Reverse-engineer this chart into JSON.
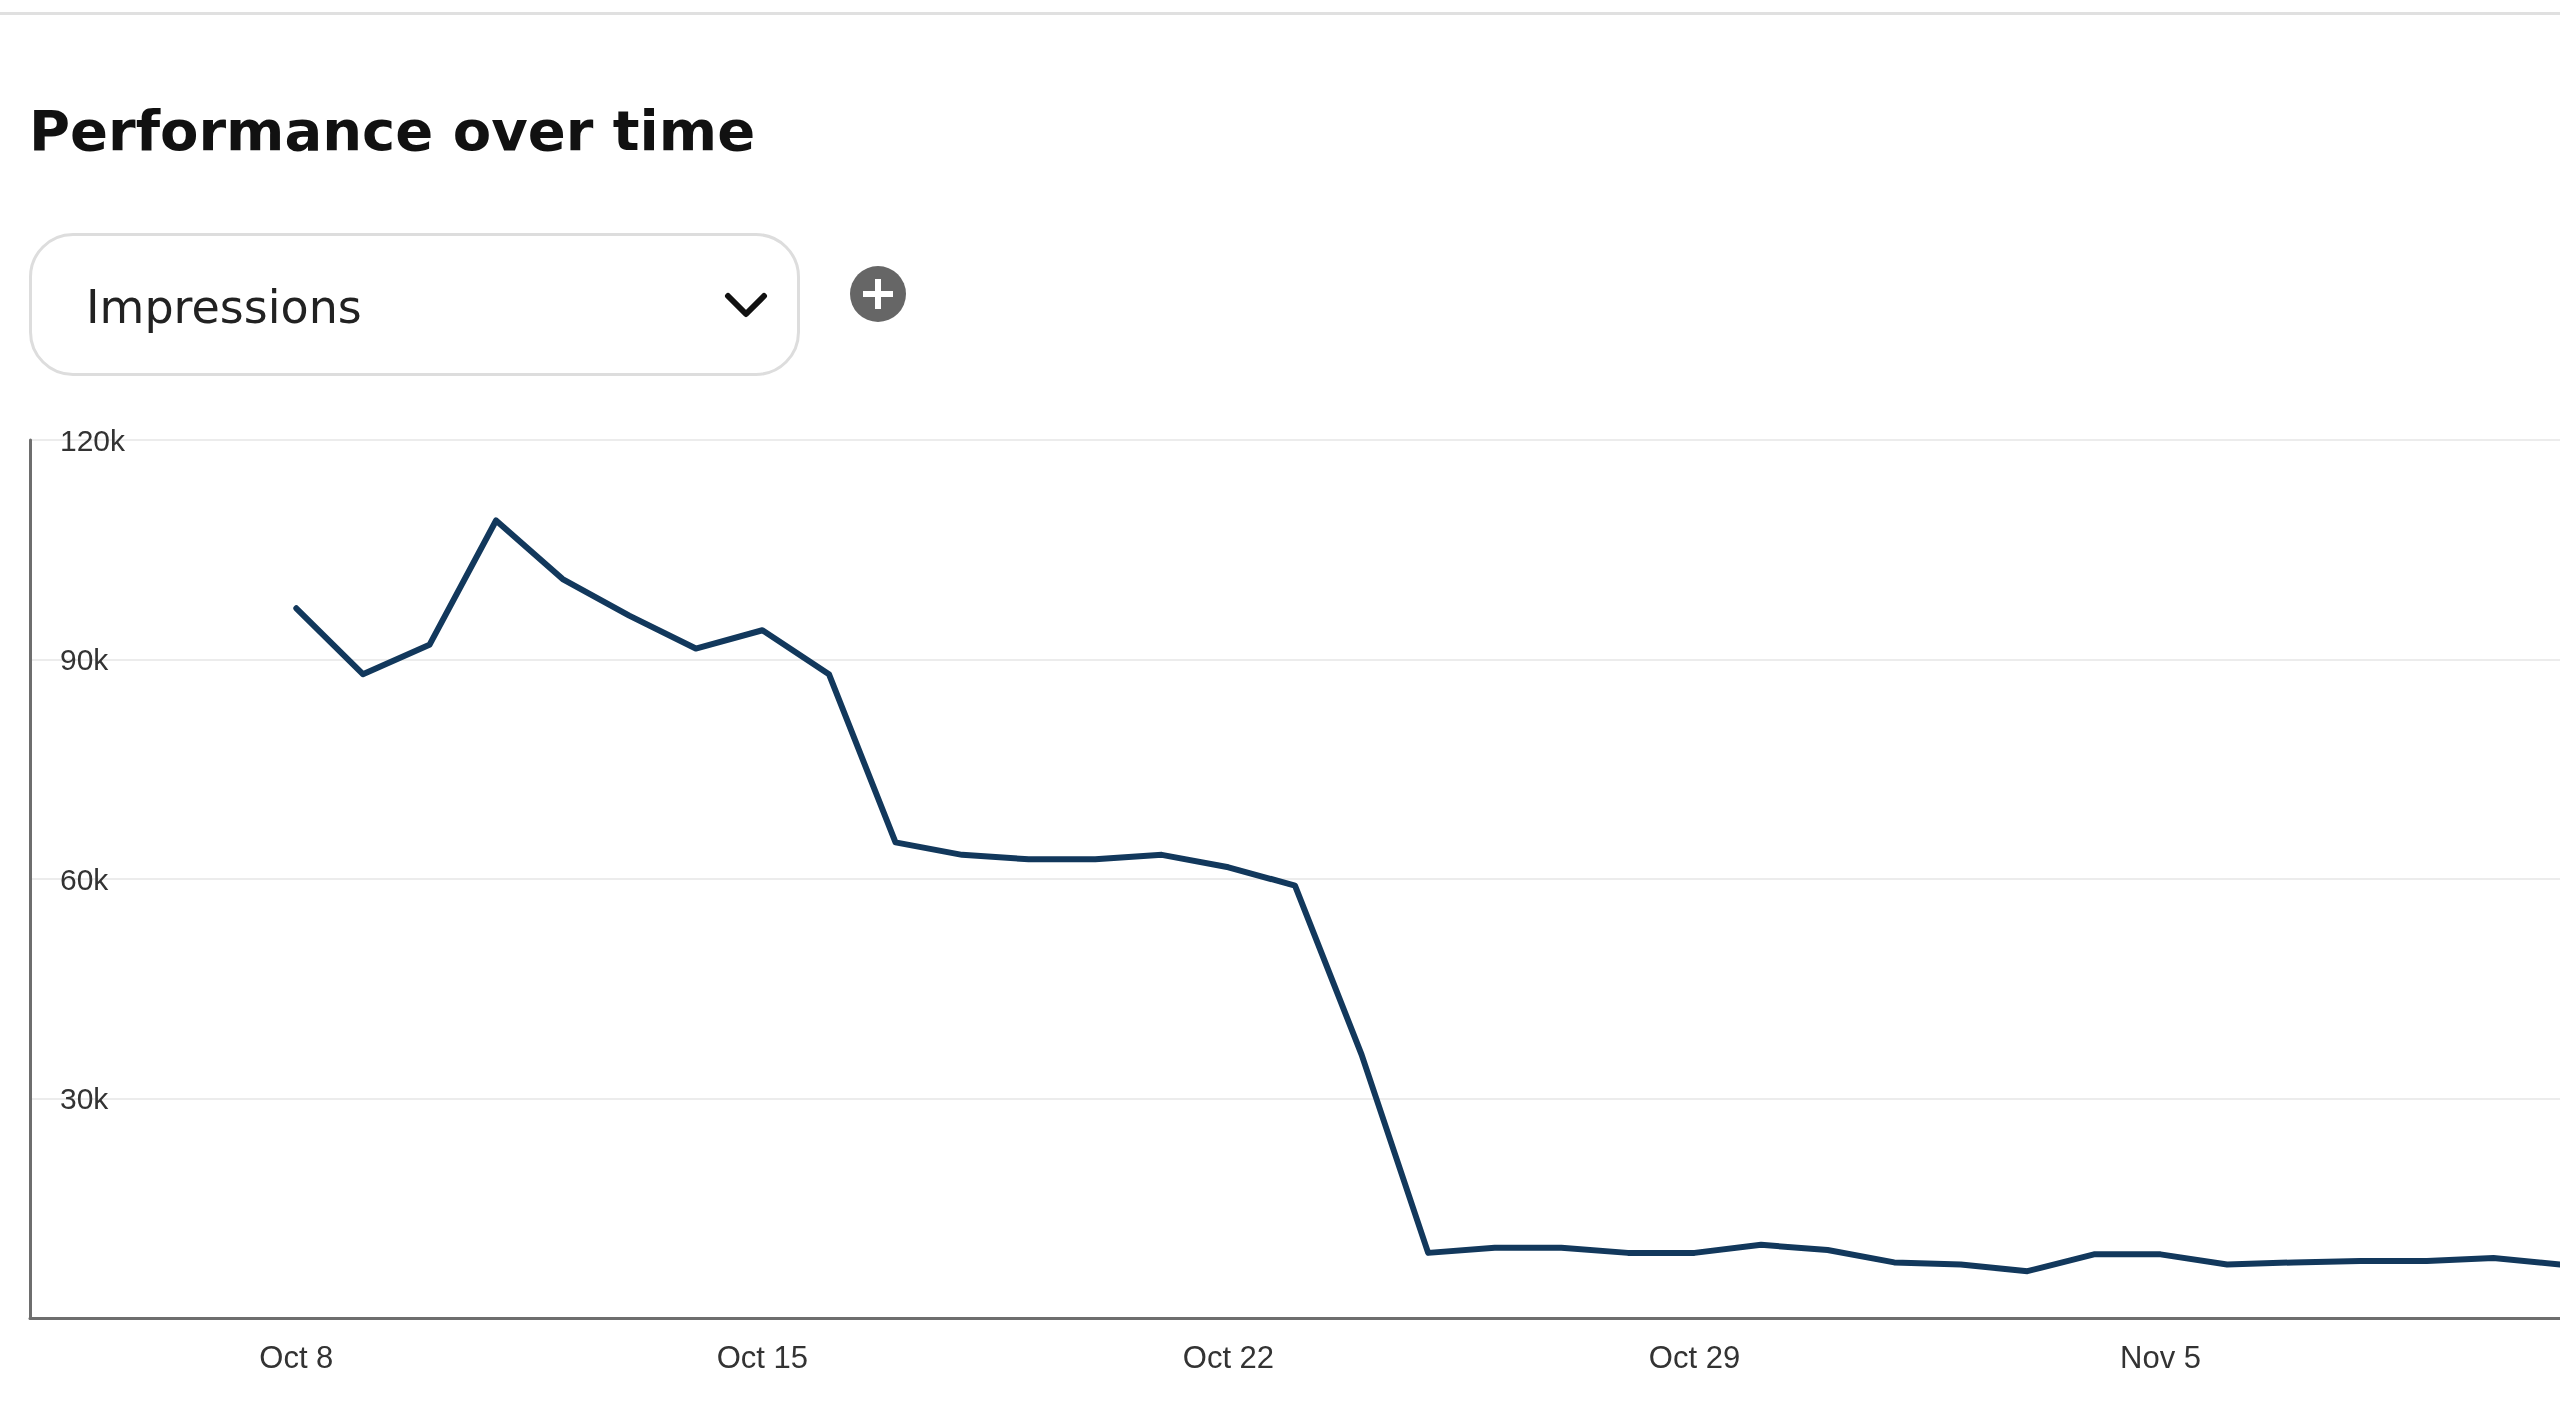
{
  "chart_data": {
    "type": "line",
    "title": "Performance over time",
    "ylabel": "Impressions",
    "x": [
      "--10-08",
      "--10-09",
      "--10-10",
      "--10-11",
      "--10-12",
      "--10-13",
      "--10-14",
      "--10-15",
      "--10-16",
      "--10-17",
      "--10-18",
      "--10-19",
      "--10-20",
      "--10-21",
      "--10-22",
      "--10-23",
      "--10-24",
      "--10-25",
      "--10-26",
      "--10-27",
      "--10-28",
      "--10-29",
      "--10-30",
      "--10-31",
      "--11-01",
      "--11-02",
      "--11-03",
      "--11-04",
      "--11-05",
      "--11-06",
      "--11-07",
      "--11-08",
      "--11-09",
      "--11-10",
      "--11-11"
    ],
    "series": [
      {
        "color": "#12385c",
        "values": [
          97000,
          88000,
          92000,
          109000,
          101000,
          96000,
          91500,
          94000,
          88000,
          65000,
          63300,
          62700,
          62700,
          63300,
          61600,
          59100,
          36000,
          8900,
          9600,
          9600,
          8900,
          8900,
          10000,
          9300,
          7600,
          7300,
          6400,
          8700,
          8700,
          7300,
          7600,
          7800,
          7800,
          8200,
          7300
        ]
      }
    ],
    "xlim": [
      "--10-04",
      "--11-11"
    ],
    "xticks": [
      {
        "value": "--10-08",
        "label": "Oct 8"
      },
      {
        "value": "--10-15",
        "label": "Oct 15"
      },
      {
        "value": "--10-22",
        "label": "Oct 22"
      },
      {
        "value": "--10-29",
        "label": "Oct 29"
      },
      {
        "value": "--11-05",
        "label": "Nov 5"
      }
    ],
    "ylim": [
      0,
      120000
    ],
    "yticks": [
      {
        "value": 30000,
        "label": "30k"
      },
      {
        "value": 60000,
        "label": "60k"
      },
      {
        "value": 90000,
        "label": "90k"
      },
      {
        "value": 120000,
        "label": "120k"
      }
    ],
    "grid": "y",
    "marker": "none",
    "line_style": "solid"
  }
}
